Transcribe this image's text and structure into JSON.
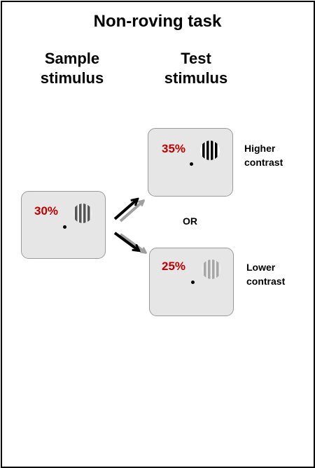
{
  "title": "Non-roving task",
  "columns": {
    "sample_line1": "Sample",
    "sample_line2": "stimulus",
    "test_line1": "Test",
    "test_line2": "stimulus"
  },
  "sample": {
    "contrast_label": "30%",
    "grating_color": "#555555"
  },
  "test_high": {
    "contrast_label": "35%",
    "grating_color": "#000000",
    "label_line1": "Higher",
    "label_line2": "contrast"
  },
  "test_low": {
    "contrast_label": "25%",
    "grating_color": "#a6a6a6",
    "label_line1": "Lower",
    "label_line2": "contrast"
  },
  "or_label": "OR",
  "colors": {
    "contrast_text": "#c00000",
    "panel_fill": "#e6e6e6",
    "panel_border": "#9a9a9a",
    "arrow_primary": "#000000",
    "arrow_secondary": "#a0a0a0"
  }
}
